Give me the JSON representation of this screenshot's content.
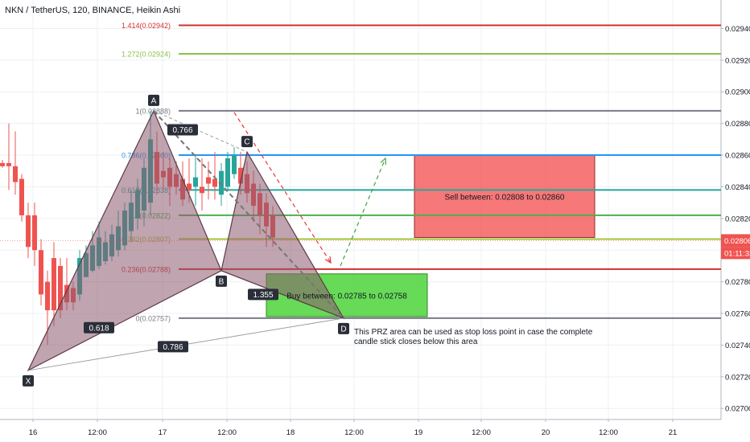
{
  "header": {
    "symbol_title": "NKN / TetherUS, 120, BINANCE, Heikin Ashi"
  },
  "colors": {
    "bull": "#26a69a",
    "bull_dark": "#1f6d65",
    "bear": "#ef5350",
    "bear_dark": "#c62828",
    "pattern_fill": "#8d5a6e",
    "sell_zone": "#f44b4b",
    "buy_zone": "#4cd43a",
    "grid": "#eef0f3"
  },
  "annotations": {
    "sell_zone_label": "Sell between: 0.02808 to 0.02860",
    "buy_zone_label": "Buy between: 0.02785 to 0.02758",
    "note": "This PRZ area can be used as stop loss point in case the complete candle stick closes below this area"
  },
  "chart_data": {
    "type": "candlestick",
    "title": "NKN / TetherUS, 120, BINANCE, Heikin Ashi",
    "x_tick_labels": [
      "16",
      "12:00",
      "17",
      "12:00",
      "18",
      "12:00",
      "19",
      "12:00",
      "20",
      "12:00",
      "21"
    ],
    "y_tick_labels": [
      "0.02700",
      "0.02720",
      "0.02740",
      "0.02760",
      "0.02780",
      "0.02800",
      "0.02820",
      "0.02840",
      "0.02860",
      "0.02880",
      "0.02900",
      "0.02920",
      "0.02940"
    ],
    "ylim": [
      0.02693,
      0.02958
    ],
    "grid": true,
    "last_price": "0.02806",
    "countdown": "01:11:32",
    "fib_levels": [
      {
        "label": "1.414(0.02942)",
        "price": 0.02942,
        "color": "#d32f2f"
      },
      {
        "label": "1.272(0.02924)",
        "price": 0.02924,
        "color": "#8bc34a"
      },
      {
        "label": "1(0.02888)",
        "price": 0.02888,
        "color": "#787b86"
      },
      {
        "label": "0.786(0.02860)",
        "price": 0.0286,
        "color": "#2196f3"
      },
      {
        "label": "0.618(0.02838)",
        "price": 0.02838,
        "color": "#26a69a"
      },
      {
        "label": "0.5(0.02822)",
        "price": 0.02822,
        "color": "#4caf50"
      },
      {
        "label": "0.382(0.02807)",
        "price": 0.02807,
        "color": "#a4c639"
      },
      {
        "label": "0.236(0.02788)",
        "price": 0.02788,
        "color": "#d32f2f"
      },
      {
        "label": "0(0.02757)",
        "price": 0.02757,
        "color": "#787b86"
      }
    ],
    "pattern_points": [
      {
        "name": "X",
        "x": 4.0,
        "y": 0.02724
      },
      {
        "name": "A",
        "x": 23.5,
        "y": 0.02888
      },
      {
        "name": "B",
        "x": 34.0,
        "y": 0.02787
      },
      {
        "name": "C",
        "x": 38.0,
        "y": 0.02862
      },
      {
        "name": "D",
        "x": 53.0,
        "y": 0.02757
      }
    ],
    "ratio_labels": [
      {
        "text": "0.766",
        "x": 28.0,
        "y": 0.02876
      },
      {
        "text": "0.618",
        "x": 15.0,
        "y": 0.02751
      },
      {
        "text": "0.786",
        "x": 26.5,
        "y": 0.02739
      },
      {
        "text": "1.355",
        "x": 40.5,
        "y": 0.02772
      }
    ],
    "zones": [
      {
        "name": "sell",
        "x0": 64.0,
        "x1": 92.0,
        "top": 0.0286,
        "bottom": 0.02808
      },
      {
        "name": "buy",
        "x0": 41.0,
        "x1": 66.0,
        "top": 0.02785,
        "bottom": 0.02758
      }
    ],
    "arrows": [
      {
        "x0": 36.0,
        "y0": 0.02887,
        "x1": 51.0,
        "y1": 0.02792,
        "color": "#e53935"
      },
      {
        "x0": 52.5,
        "y0": 0.0279,
        "x1": 59.5,
        "y1": 0.02858,
        "color": "#43a047"
      }
    ],
    "candles": [
      {
        "t": 0.0,
        "o": 0.02855,
        "h": 0.02857,
        "l": 0.02852,
        "c": 0.02853
      },
      {
        "t": 1.0,
        "o": 0.02855,
        "h": 0.0288,
        "l": 0.02838,
        "c": 0.02853
      },
      {
        "t": 2.0,
        "o": 0.02853,
        "h": 0.02875,
        "l": 0.02835,
        "c": 0.02843
      },
      {
        "t": 3.0,
        "o": 0.02845,
        "h": 0.02848,
        "l": 0.02818,
        "c": 0.02822
      },
      {
        "t": 4.0,
        "o": 0.02822,
        "h": 0.0283,
        "l": 0.02795,
        "c": 0.02802
      },
      {
        "t": 5.0,
        "o": 0.02822,
        "h": 0.0283,
        "l": 0.0279,
        "c": 0.028
      },
      {
        "t": 6.0,
        "o": 0.028,
        "h": 0.02807,
        "l": 0.02765,
        "c": 0.02772
      },
      {
        "t": 7.0,
        "o": 0.0278,
        "h": 0.02787,
        "l": 0.0274,
        "c": 0.02762
      },
      {
        "t": 8.0,
        "o": 0.02795,
        "h": 0.02805,
        "l": 0.02752,
        "c": 0.02762
      },
      {
        "t": 9.0,
        "o": 0.0279,
        "h": 0.02795,
        "l": 0.02757,
        "c": 0.02762
      },
      {
        "t": 10.0,
        "o": 0.02778,
        "h": 0.02795,
        "l": 0.02762,
        "c": 0.02767
      },
      {
        "t": 11.0,
        "o": 0.02776,
        "h": 0.0278,
        "l": 0.02762,
        "c": 0.02767
      },
      {
        "t": 12.0,
        "o": 0.02772,
        "h": 0.028,
        "l": 0.02768,
        "c": 0.02795
      },
      {
        "t": 13.0,
        "o": 0.02783,
        "h": 0.02803,
        "l": 0.02783,
        "c": 0.02798
      },
      {
        "t": 14.0,
        "o": 0.02787,
        "h": 0.02812,
        "l": 0.02786,
        "c": 0.02803
      },
      {
        "t": 15.0,
        "o": 0.0279,
        "h": 0.02818,
        "l": 0.02788,
        "c": 0.02808
      },
      {
        "t": 16.0,
        "o": 0.02793,
        "h": 0.02812,
        "l": 0.02791,
        "c": 0.02805
      },
      {
        "t": 17.0,
        "o": 0.02796,
        "h": 0.02816,
        "l": 0.02793,
        "c": 0.0281
      },
      {
        "t": 18.0,
        "o": 0.028,
        "h": 0.02825,
        "l": 0.02796,
        "c": 0.02815
      },
      {
        "t": 19.0,
        "o": 0.02803,
        "h": 0.0283,
        "l": 0.028,
        "c": 0.02825
      },
      {
        "t": 20.0,
        "o": 0.02812,
        "h": 0.02838,
        "l": 0.02805,
        "c": 0.0283
      },
      {
        "t": 21.0,
        "o": 0.0282,
        "h": 0.02845,
        "l": 0.02813,
        "c": 0.02838
      },
      {
        "t": 22.0,
        "o": 0.02825,
        "h": 0.02858,
        "l": 0.02815,
        "c": 0.02852
      },
      {
        "t": 23.0,
        "o": 0.0283,
        "h": 0.02888,
        "l": 0.02822,
        "c": 0.0287
      },
      {
        "t": 24.0,
        "o": 0.02862,
        "h": 0.02875,
        "l": 0.02835,
        "c": 0.02842
      },
      {
        "t": 25.0,
        "o": 0.0285,
        "h": 0.02862,
        "l": 0.02838,
        "c": 0.02846
      },
      {
        "t": 26.0,
        "o": 0.02852,
        "h": 0.02858,
        "l": 0.02828,
        "c": 0.0284
      },
      {
        "t": 27.0,
        "o": 0.02848,
        "h": 0.02856,
        "l": 0.02835,
        "c": 0.0284
      },
      {
        "t": 28.0,
        "o": 0.02845,
        "h": 0.02856,
        "l": 0.02828,
        "c": 0.02832
      },
      {
        "t": 29.0,
        "o": 0.02842,
        "h": 0.02858,
        "l": 0.0283,
        "c": 0.02838
      },
      {
        "t": 30.0,
        "o": 0.0284,
        "h": 0.0286,
        "l": 0.02828,
        "c": 0.02846
      },
      {
        "t": 31.0,
        "o": 0.0284,
        "h": 0.02858,
        "l": 0.02825,
        "c": 0.02836
      },
      {
        "t": 32.0,
        "o": 0.02846,
        "h": 0.02856,
        "l": 0.02832,
        "c": 0.02842
      },
      {
        "t": 33.0,
        "o": 0.02845,
        "h": 0.02862,
        "l": 0.02832,
        "c": 0.0284
      },
      {
        "t": 34.0,
        "o": 0.02835,
        "h": 0.02855,
        "l": 0.02828,
        "c": 0.0285
      },
      {
        "t": 35.0,
        "o": 0.0284,
        "h": 0.02862,
        "l": 0.02838,
        "c": 0.02858
      },
      {
        "t": 36.0,
        "o": 0.02848,
        "h": 0.02865,
        "l": 0.02845,
        "c": 0.0286
      },
      {
        "t": 37.0,
        "o": 0.02852,
        "h": 0.02862,
        "l": 0.02835,
        "c": 0.02842
      },
      {
        "t": 38.0,
        "o": 0.02848,
        "h": 0.02856,
        "l": 0.0283,
        "c": 0.02836
      },
      {
        "t": 39.0,
        "o": 0.02842,
        "h": 0.0285,
        "l": 0.02818,
        "c": 0.02828
      },
      {
        "t": 40.0,
        "o": 0.02836,
        "h": 0.02842,
        "l": 0.0281,
        "c": 0.02822
      },
      {
        "t": 41.0,
        "o": 0.0283,
        "h": 0.02836,
        "l": 0.02802,
        "c": 0.02815
      },
      {
        "t": 42.0,
        "o": 0.02822,
        "h": 0.02828,
        "l": 0.02802,
        "c": 0.02808
      }
    ]
  }
}
